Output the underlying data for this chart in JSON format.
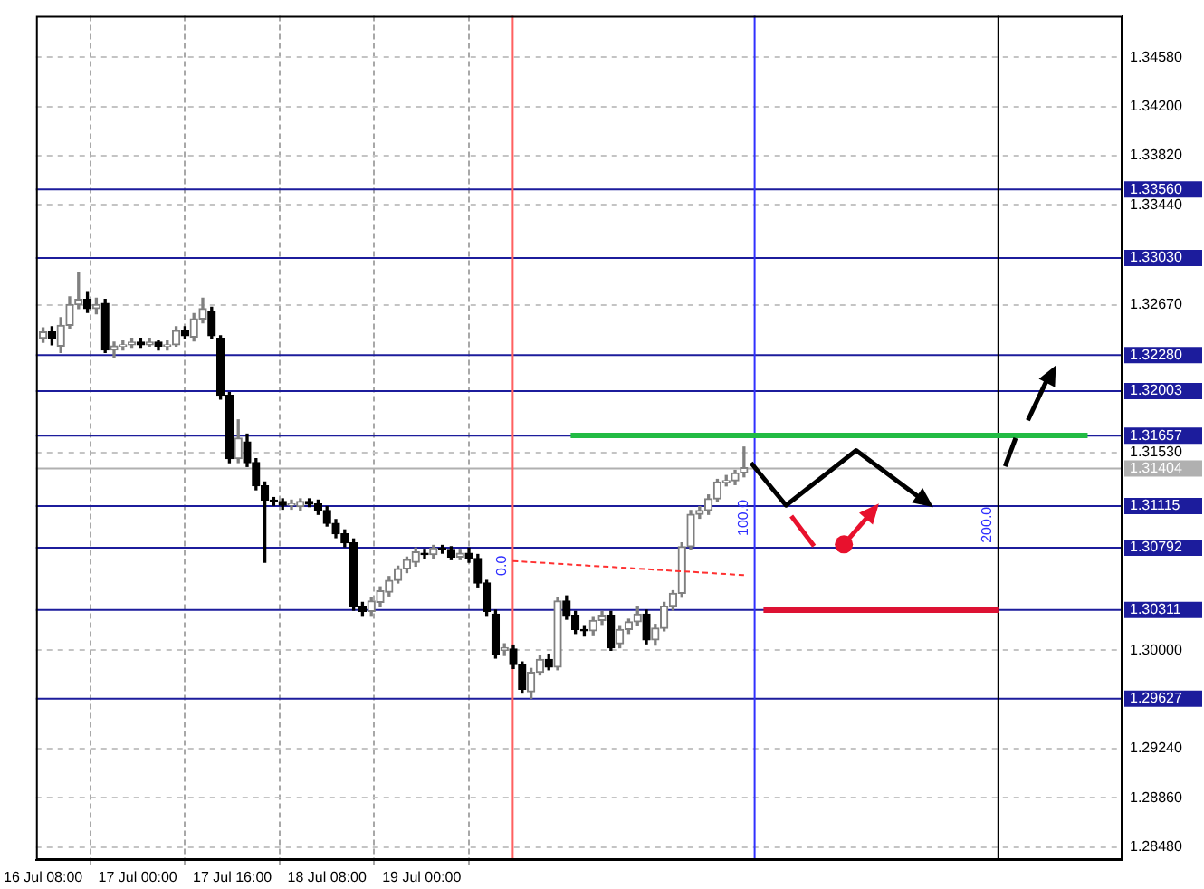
{
  "chart_data": {
    "type": "candlestick",
    "colors": [
      "#808080",
      "#000000",
      "#808080",
      "#808080",
      "#808080",
      "#000000",
      "#808080",
      "#000000",
      "#808080",
      "#808080",
      "#808080",
      "#000000",
      "#808080",
      "#000000",
      "#808080",
      "#808080",
      "#000000",
      "#808080",
      "#808080",
      "#000000",
      "#000000",
      "#000000",
      "#808080",
      "#000000",
      "#000000",
      "#000000",
      "#000000",
      "#000000",
      "#808080",
      "#808080",
      "#000000",
      "#000000",
      "#000000",
      "#000000",
      "#000000",
      "#000000",
      "#000000",
      "#808080",
      "#808080",
      "#808080",
      "#808080",
      "#808080",
      "#808080",
      "#000000",
      "#808080",
      "#000000",
      "#000000",
      "#808080",
      "#000000",
      "#000000",
      "#000000",
      "#000000",
      "#808080",
      "#000000",
      "#000000",
      "#808080",
      "#808080",
      "#000000",
      "#808080",
      "#000000",
      "#000000",
      "#000000",
      "#808080",
      "#808080",
      "#000000",
      "#808080",
      "#808080",
      "#808080",
      "#000000",
      "#808080",
      "#808080",
      "#808080",
      "#808080",
      "#808080",
      "#808080",
      "#808080",
      "#808080",
      "#808080",
      "#808080",
      "#808080"
    ],
    "x": [
      "--07-16T08:00",
      "--07-16T09:30",
      "--07-16T11:00",
      "--07-16T12:30",
      "--07-16T14:00",
      "--07-16T15:30",
      "--07-16T17:00",
      "--07-16T18:30",
      "--07-16T20:00",
      "--07-16T21:30",
      "--07-16T23:00",
      "--07-17T00:30",
      "--07-17T02:00",
      "--07-17T03:30",
      "--07-17T05:00",
      "--07-17T06:30",
      "--07-17T08:00",
      "--07-17T09:30",
      "--07-17T11:00",
      "--07-17T12:30",
      "--07-17T14:00",
      "--07-17T15:30",
      "--07-17T17:00",
      "--07-17T18:30",
      "--07-17T20:00",
      "--07-17T21:30",
      "--07-17T23:00",
      "--07-18T00:30",
      "--07-18T02:00",
      "--07-18T03:30",
      "--07-18T05:00",
      "--07-18T06:30",
      "--07-18T08:00",
      "--07-18T09:30",
      "--07-18T11:00",
      "--07-18T12:30",
      "--07-18T14:00",
      "--07-18T15:30",
      "--07-18T17:00",
      "--07-18T18:30",
      "--07-18T20:00",
      "--07-18T21:30",
      "--07-18T23:00",
      "--07-19T00:30",
      "--07-19T02:00",
      "--07-19T03:30",
      "--07-19T05:00",
      "--07-19T06:30",
      "--07-19T08:00",
      "--07-19T09:30",
      "--07-19T11:00",
      "--07-19T12:30",
      "--07-19T14:00",
      "--07-19T15:30",
      "--07-19T17:00",
      "--07-19T18:30",
      "--07-19T20:00",
      "--07-19T21:30",
      "--07-19T23:00",
      "--07-20T00:30",
      "--07-20T02:00",
      "--07-20T03:30",
      "--07-20T05:00",
      "--07-20T06:30",
      "--07-20T08:00",
      "--07-20T09:30",
      "--07-20T11:00",
      "--07-20T12:30",
      "--07-20T14:00",
      "--07-20T15:30",
      "--07-20T17:00",
      "--07-20T18:30",
      "--07-20T20:00",
      "--07-20T21:30",
      "--07-20T23:00",
      "--07-21T00:30",
      "--07-21T02:00",
      "--07-21T03:30",
      "--07-21T05:00",
      "--07-21T06:30"
    ],
    "ohlc": [
      [
        1.3241,
        1.3249,
        1.3238,
        1.3246
      ],
      [
        1.3246,
        1.325,
        1.3236,
        1.3241
      ],
      [
        1.3235,
        1.3257,
        1.323,
        1.3251
      ],
      [
        1.3251,
        1.3273,
        1.3249,
        1.3267
      ],
      [
        1.3267,
        1.3292,
        1.3264,
        1.3271
      ],
      [
        1.3271,
        1.3277,
        1.3261,
        1.3264
      ],
      [
        1.3264,
        1.3272,
        1.326,
        1.3267
      ],
      [
        1.3268,
        1.3271,
        1.323,
        1.3232
      ],
      [
        1.3232,
        1.3238,
        1.3226,
        1.3235
      ],
      [
        1.3235,
        1.3239,
        1.3232,
        1.3236
      ],
      [
        1.3236,
        1.3241,
        1.3234,
        1.3238
      ],
      [
        1.3238,
        1.3241,
        1.3234,
        1.3236
      ],
      [
        1.3236,
        1.3241,
        1.3235,
        1.3238
      ],
      [
        1.3238,
        1.3239,
        1.3232,
        1.3235
      ],
      [
        1.3235,
        1.3239,
        1.3232,
        1.3236
      ],
      [
        1.3236,
        1.325,
        1.3235,
        1.3247
      ],
      [
        1.3247,
        1.325,
        1.3241,
        1.3243
      ],
      [
        1.3242,
        1.326,
        1.3239,
        1.3256
      ],
      [
        1.3256,
        1.3272,
        1.3253,
        1.3264
      ],
      [
        1.3262,
        1.3265,
        1.3241,
        1.3243
      ],
      [
        1.3241,
        1.3243,
        1.3194,
        1.3197
      ],
      [
        1.3197,
        1.3199,
        1.3145,
        1.3148
      ],
      [
        1.3148,
        1.3178,
        1.3145,
        1.3164
      ],
      [
        1.3161,
        1.3167,
        1.3142,
        1.3145
      ],
      [
        1.3145,
        1.3148,
        1.3124,
        1.3127
      ],
      [
        1.3127,
        1.313,
        1.3068,
        1.3116
      ],
      [
        1.3116,
        1.3118,
        1.3112,
        1.3115
      ],
      [
        1.3115,
        1.3117,
        1.3109,
        1.3112
      ],
      [
        1.3112,
        1.3116,
        1.3109,
        1.3113
      ],
      [
        1.3111,
        1.3117,
        1.3108,
        1.3115
      ],
      [
        1.3115,
        1.3117,
        1.3111,
        1.3113
      ],
      [
        1.3113,
        1.3116,
        1.3105,
        1.3108
      ],
      [
        1.3108,
        1.3111,
        1.3096,
        1.3098
      ],
      [
        1.3098,
        1.3101,
        1.3087,
        1.309
      ],
      [
        1.309,
        1.3093,
        1.308,
        1.3083
      ],
      [
        1.3083,
        1.3086,
        1.3031,
        1.3034
      ],
      [
        1.3034,
        1.3037,
        1.3027,
        1.303
      ],
      [
        1.303,
        1.3041,
        1.3027,
        1.3038
      ],
      [
        1.3037,
        1.3049,
        1.3034,
        1.3046
      ],
      [
        1.3045,
        1.3057,
        1.3042,
        1.3054
      ],
      [
        1.3054,
        1.3065,
        1.3052,
        1.3063
      ],
      [
        1.3063,
        1.3072,
        1.306,
        1.307
      ],
      [
        1.3068,
        1.3079,
        1.3065,
        1.3076
      ],
      [
        1.3075,
        1.3078,
        1.3071,
        1.3074
      ],
      [
        1.3074,
        1.3081,
        1.3071,
        1.3079
      ],
      [
        1.3079,
        1.3081,
        1.3075,
        1.3078
      ],
      [
        1.3078,
        1.308,
        1.307,
        1.3072
      ],
      [
        1.3072,
        1.3078,
        1.307,
        1.3075
      ],
      [
        1.3075,
        1.3079,
        1.3068,
        1.3071
      ],
      [
        1.3071,
        1.3074,
        1.3049,
        1.3052
      ],
      [
        1.3052,
        1.3054,
        1.3027,
        1.303
      ],
      [
        1.3028,
        1.3031,
        1.2994,
        1.2997
      ],
      [
        1.3,
        1.3005,
        1.2996,
        1.3002
      ],
      [
        1.3001,
        1.3004,
        1.2986,
        1.2989
      ],
      [
        1.2989,
        1.2991,
        1.2967,
        1.297
      ],
      [
        1.2968,
        1.2986,
        1.2963,
        1.2983
      ],
      [
        1.2983,
        1.2996,
        1.2981,
        1.2993
      ],
      [
        1.2993,
        1.2997,
        1.2985,
        1.2987
      ],
      [
        1.2987,
        1.3041,
        1.2985,
        1.3038
      ],
      [
        1.3038,
        1.3042,
        1.3024,
        1.3027
      ],
      [
        1.3027,
        1.303,
        1.3013,
        1.3016
      ],
      [
        1.3016,
        1.3019,
        1.3011,
        1.3015
      ],
      [
        1.3015,
        1.3026,
        1.3012,
        1.3023
      ],
      [
        1.3023,
        1.303,
        1.302,
        1.3027
      ],
      [
        1.3027,
        1.303,
        1.3,
        1.3002
      ],
      [
        1.3005,
        1.3019,
        1.3002,
        1.3016
      ],
      [
        1.3016,
        1.3024,
        1.3013,
        1.3022
      ],
      [
        1.3022,
        1.3034,
        1.3019,
        1.3028
      ],
      [
        1.3028,
        1.3031,
        1.3005,
        1.3008
      ],
      [
        1.3008,
        1.302,
        1.3004,
        1.3017
      ],
      [
        1.3017,
        1.3037,
        1.3015,
        1.3034
      ],
      [
        1.3034,
        1.3046,
        1.3031,
        1.3044
      ],
      [
        1.3044,
        1.3083,
        1.3041,
        1.308
      ],
      [
        1.308,
        1.3108,
        1.3078,
        1.3105
      ],
      [
        1.3105,
        1.3111,
        1.3102,
        1.3108
      ],
      [
        1.3108,
        1.312,
        1.3105,
        1.3117
      ],
      [
        1.3117,
        1.3132,
        1.3115,
        1.313
      ],
      [
        1.313,
        1.3135,
        1.3127,
        1.3131
      ],
      [
        1.3131,
        1.3139,
        1.3128,
        1.3137
      ],
      [
        1.3137,
        1.3157,
        1.3134,
        1.3141
      ]
    ],
    "series": [
      {
        "type": "line",
        "x": [
          "--07-20T01:12",
          "--07-23T16:36"
        ],
        "values": [
          1.3166,
          1.3166
        ],
        "color": "#22bb44",
        "line_style": "solid"
      },
      {
        "type": "line",
        "x": [
          "--07-21T09:48",
          "--07-23T01:30"
        ],
        "values": [
          1.3031,
          1.3031
        ],
        "color": "#dd1133",
        "line_style": "solid"
      },
      {
        "type": "line",
        "x": [
          "--07-19T15:24",
          "--07-21T06:48"
        ],
        "values": [
          1.3069,
          1.3058
        ],
        "color": "#ff3030",
        "line_style": "dashed"
      }
    ],
    "xlim": [
      "--07-16T06:48",
      "--07-23T22:30"
    ],
    "xticks": [
      {
        "value": "--07-16T08:00",
        "label": "16 Jul 08:00"
      },
      {
        "value": "--07-17T00:00",
        "label": "17 Jul 00:00"
      },
      {
        "value": "--07-17T16:00",
        "label": "17 Jul 16:00"
      },
      {
        "value": "--07-18T08:00",
        "label": "18 Jul 08:00"
      },
      {
        "value": "--07-19T00:00",
        "label": "19 Jul 00:00"
      }
    ],
    "ylim": [
      1.2838,
      1.349
    ],
    "yticks": [
      {
        "value": 1.2848,
        "label": "1.28480"
      },
      {
        "value": 1.2886,
        "label": "1.28860"
      },
      {
        "value": 1.2924,
        "label": "1.29240"
      },
      {
        "value": 1.3,
        "label": "1.30000"
      },
      {
        "value": 1.3153,
        "label": "1.31530"
      },
      {
        "value": 1.3267,
        "label": "1.32670"
      },
      {
        "value": 1.3344,
        "label": "1.33440"
      },
      {
        "value": 1.3382,
        "label": "1.33820"
      },
      {
        "value": 1.342,
        "label": "1.34200"
      },
      {
        "value": 1.3458,
        "label": "1.34580"
      }
    ],
    "ref_lines": [
      {
        "axis": "y",
        "value": 1.3356,
        "label": "1.33560",
        "color": "#1c1c9c"
      },
      {
        "axis": "y",
        "value": 1.3303,
        "label": "1.33030",
        "color": "#1c1c9c"
      },
      {
        "axis": "y",
        "value": 1.3228,
        "label": "1.32280",
        "color": "#1c1c9c"
      },
      {
        "axis": "y",
        "value": 1.32003,
        "label": "1.32003",
        "color": "#1c1c9c"
      },
      {
        "axis": "y",
        "value": 1.31657,
        "label": "1.31657",
        "color": "#1c1c9c"
      },
      {
        "axis": "y",
        "value": 1.31404,
        "label": "1.31404",
        "color": "#b0b0b0"
      },
      {
        "axis": "y",
        "value": 1.31115,
        "label": "1.31115",
        "color": "#1c1c9c"
      },
      {
        "axis": "y",
        "value": 1.30792,
        "label": "1.30792",
        "color": "#1c1c9c"
      },
      {
        "axis": "y",
        "value": 1.30311,
        "label": "1.30311",
        "color": "#1c1c9c"
      },
      {
        "axis": "y",
        "value": 1.29627,
        "label": "1.29627",
        "color": "#1c1c9c"
      },
      {
        "axis": "x",
        "value": "--07-19T15:24",
        "color": "#ff6060"
      },
      {
        "axis": "x",
        "value": "--07-21T08:18",
        "color": "#3030ff"
      },
      {
        "axis": "x",
        "value": "--07-23T01:30",
        "color": "#000000"
      }
    ],
    "annotations": [
      "0.0",
      "100.0",
      "200.0"
    ],
    "grid": true
  }
}
